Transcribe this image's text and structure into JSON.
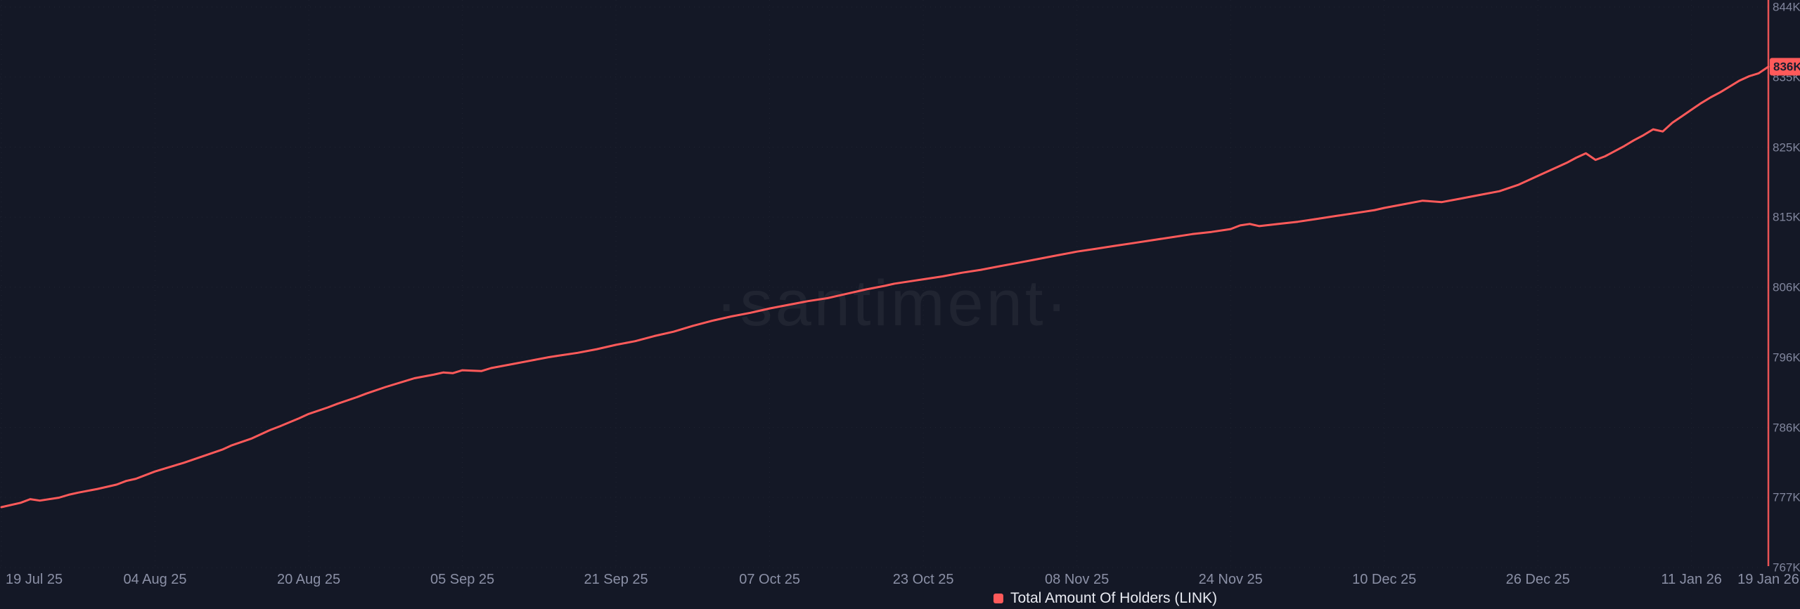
{
  "watermark": "·santiment·",
  "colors": {
    "background": "#141826",
    "line": "#ff5a5a",
    "marker_line": "#ff5a5a",
    "badge_bg": "#ff5a5a",
    "badge_text": "#1a1e30",
    "grid": "rgba(255,255,255,0.05)",
    "y_axis_text": "#81869d",
    "x_axis_text": "#8b90a6",
    "legend_text": "#e9ebf2"
  },
  "chart_data": {
    "type": "line",
    "title": "Total Amount Of Holders (LINK)",
    "legend_position": "bottom-center",
    "grid": "dotted",
    "y_min": 767,
    "y_max": 844,
    "y_unit": "K",
    "days_total": 184,
    "x_tick_labels": [
      "19 Jul 25",
      "04 Aug 25",
      "20 Aug 25",
      "05 Sep 25",
      "21 Sep 25",
      "07 Oct 25",
      "23 Oct 25",
      "08 Nov 25",
      "24 Nov 25",
      "10 Dec 25",
      "26 Dec 25",
      "11 Jan 26",
      "19 Jan 26"
    ],
    "x_tick_days": [
      0,
      16,
      32,
      48,
      64,
      80,
      96,
      112,
      128,
      144,
      160,
      176,
      184
    ],
    "y_tick_labels": [
      "844K",
      "835K",
      "825K",
      "815K",
      "806K",
      "796K",
      "786K",
      "777K",
      "767K"
    ],
    "series": [
      {
        "name": "Total Amount Of Holders (LINK)",
        "unit": "K holders",
        "last_value_label": "836K",
        "points_day_value": [
          [
            0,
            775.3
          ],
          [
            2,
            775.9
          ],
          [
            3,
            776.4
          ],
          [
            4,
            776.2
          ],
          [
            6,
            776.6
          ],
          [
            7,
            777.0
          ],
          [
            8,
            777.3
          ],
          [
            10,
            777.8
          ],
          [
            12,
            778.4
          ],
          [
            13,
            778.9
          ],
          [
            14,
            779.2
          ],
          [
            16,
            780.2
          ],
          [
            18,
            781.0
          ],
          [
            19,
            781.4
          ],
          [
            21,
            782.3
          ],
          [
            23,
            783.2
          ],
          [
            24,
            783.8
          ],
          [
            26,
            784.7
          ],
          [
            28,
            785.9
          ],
          [
            29,
            786.4
          ],
          [
            31,
            787.5
          ],
          [
            32,
            788.1
          ],
          [
            34,
            789.0
          ],
          [
            35,
            789.5
          ],
          [
            37,
            790.4
          ],
          [
            38,
            790.9
          ],
          [
            40,
            791.8
          ],
          [
            42,
            792.6
          ],
          [
            43,
            793.0
          ],
          [
            45,
            793.5
          ],
          [
            46,
            793.8
          ],
          [
            47,
            793.7
          ],
          [
            48,
            794.1
          ],
          [
            50,
            794.0
          ],
          [
            51,
            794.4
          ],
          [
            53,
            794.9
          ],
          [
            55,
            795.4
          ],
          [
            57,
            795.9
          ],
          [
            58,
            796.1
          ],
          [
            60,
            796.5
          ],
          [
            62,
            797.0
          ],
          [
            64,
            797.6
          ],
          [
            66,
            798.1
          ],
          [
            68,
            798.8
          ],
          [
            70,
            799.4
          ],
          [
            72,
            800.2
          ],
          [
            74,
            800.9
          ],
          [
            76,
            801.5
          ],
          [
            78,
            802.0
          ],
          [
            80,
            802.6
          ],
          [
            82,
            803.1
          ],
          [
            84,
            803.6
          ],
          [
            86,
            804.0
          ],
          [
            88,
            804.6
          ],
          [
            90,
            805.2
          ],
          [
            92,
            805.7
          ],
          [
            93,
            806.0
          ],
          [
            95,
            806.4
          ],
          [
            96,
            806.6
          ],
          [
            98,
            807.0
          ],
          [
            100,
            807.5
          ],
          [
            102,
            807.9
          ],
          [
            104,
            808.4
          ],
          [
            106,
            808.9
          ],
          [
            108,
            809.4
          ],
          [
            110,
            809.9
          ],
          [
            112,
            810.4
          ],
          [
            114,
            810.8
          ],
          [
            116,
            811.2
          ],
          [
            118,
            811.6
          ],
          [
            120,
            812.0
          ],
          [
            122,
            812.4
          ],
          [
            124,
            812.8
          ],
          [
            126,
            813.1
          ],
          [
            128,
            813.5
          ],
          [
            129,
            814.0
          ],
          [
            130,
            814.2
          ],
          [
            131,
            813.9
          ],
          [
            133,
            814.2
          ],
          [
            135,
            814.5
          ],
          [
            137,
            814.9
          ],
          [
            139,
            815.3
          ],
          [
            141,
            815.7
          ],
          [
            143,
            816.1
          ],
          [
            144,
            816.4
          ],
          [
            146,
            816.9
          ],
          [
            148,
            817.4
          ],
          [
            150,
            817.2
          ],
          [
            152,
            817.7
          ],
          [
            154,
            818.2
          ],
          [
            156,
            818.7
          ],
          [
            158,
            819.6
          ],
          [
            160,
            820.8
          ],
          [
            162,
            822.0
          ],
          [
            163,
            822.6
          ],
          [
            164,
            823.3
          ],
          [
            165,
            823.9
          ],
          [
            166,
            823.0
          ],
          [
            167,
            823.5
          ],
          [
            168,
            824.2
          ],
          [
            169,
            824.9
          ],
          [
            170,
            825.7
          ],
          [
            171,
            826.4
          ],
          [
            172,
            827.2
          ],
          [
            173,
            826.9
          ],
          [
            174,
            828.1
          ],
          [
            175,
            829.0
          ],
          [
            176,
            829.9
          ],
          [
            177,
            830.8
          ],
          [
            178,
            831.6
          ],
          [
            179,
            832.3
          ],
          [
            180,
            833.1
          ],
          [
            181,
            833.9
          ],
          [
            182,
            834.5
          ],
          [
            183,
            834.9
          ],
          [
            184,
            835.8
          ]
        ]
      }
    ]
  }
}
